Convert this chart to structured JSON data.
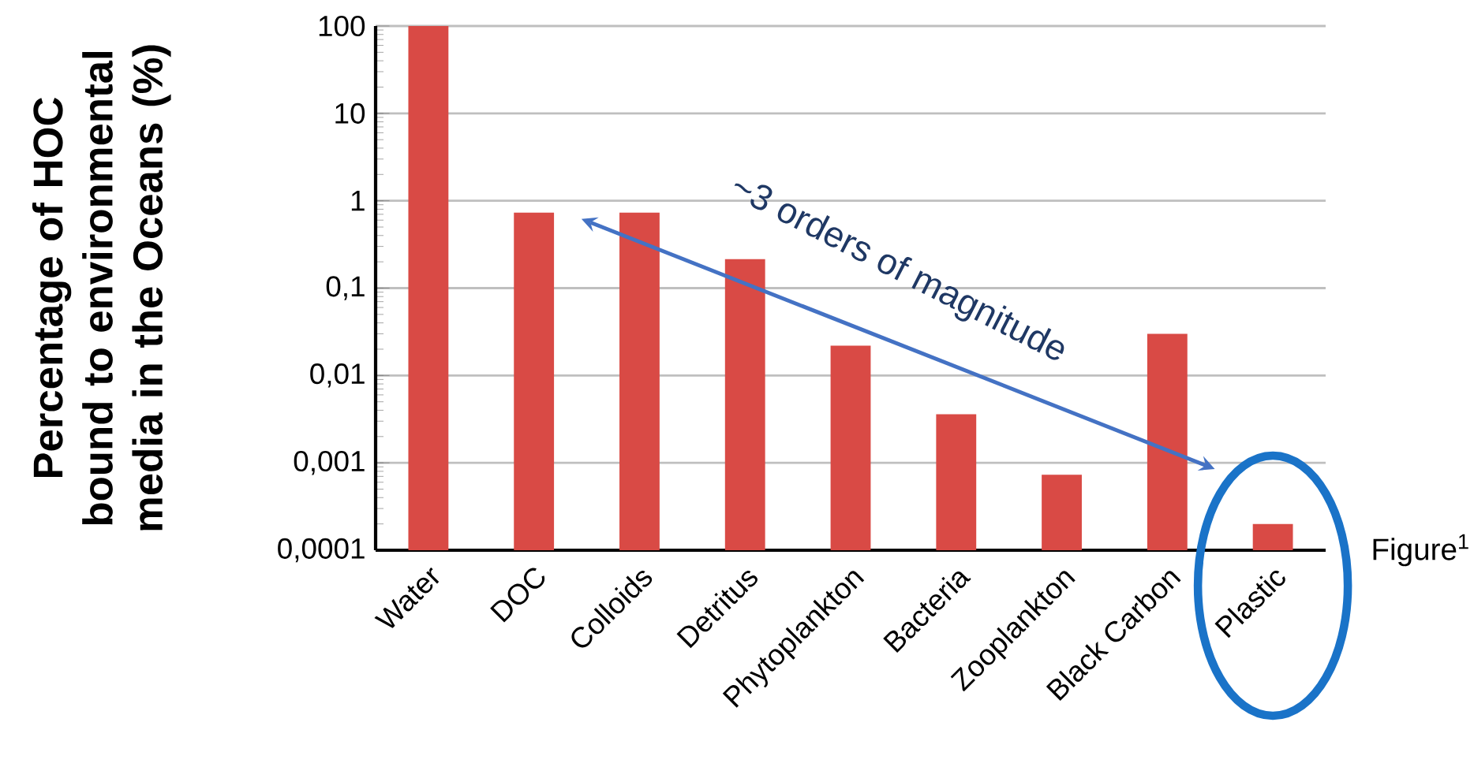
{
  "chart_data": {
    "type": "bar",
    "ylabel": "Percentage of HOC bound to environmental media in the Oceans (%)",
    "categories": [
      "Water",
      "DOC",
      "Colloids",
      "Detritus",
      "Phytoplankton",
      "Bacteria",
      "Zooplankton",
      "Black Carbon",
      "Plastic"
    ],
    "values": [
      100,
      0.73,
      0.73,
      0.215,
      0.022,
      0.0036,
      0.00073,
      0.03,
      0.0002
    ],
    "color": "#d94a45",
    "log": "y",
    "ylim": [
      0.0001,
      100
    ],
    "yticks": [
      {
        "value": 0.0001,
        "label": "0,0001"
      },
      {
        "value": 0.001,
        "label": "0,001"
      },
      {
        "value": 0.01,
        "label": "0,01"
      },
      {
        "value": 0.1,
        "label": "0,1"
      },
      1,
      10,
      100
    ],
    "grid": "y",
    "annotations": [
      "~3 orders of magnitude",
      "Figure$^{1}$"
    ]
  }
}
